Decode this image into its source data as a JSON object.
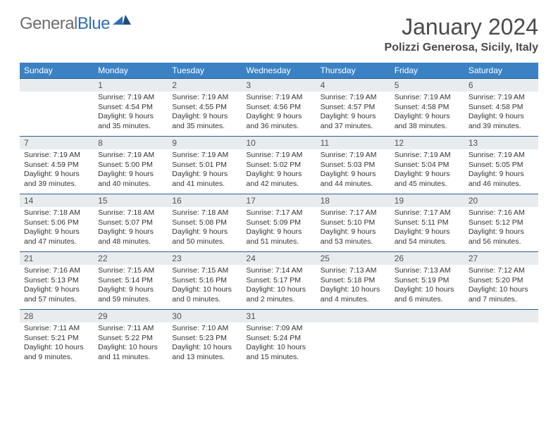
{
  "logo": {
    "text_gray": "General",
    "text_blue": "Blue"
  },
  "title": "January 2024",
  "location": "Polizzi Generosa, Sicily, Italy",
  "colors": {
    "header_bg": "#3a82c4",
    "header_text": "#ffffff",
    "daynum_bg": "#e9ecef",
    "daynum_border": "#2b5e8e",
    "body_text": "#333333",
    "logo_gray": "#6e6e6e",
    "logo_blue": "#2f6fb3",
    "title_color": "#4a4a4a"
  },
  "weekdays": [
    "Sunday",
    "Monday",
    "Tuesday",
    "Wednesday",
    "Thursday",
    "Friday",
    "Saturday"
  ],
  "weeks": [
    [
      {
        "n": "",
        "sr": "",
        "ss": "",
        "dl": ""
      },
      {
        "n": "1",
        "sr": "Sunrise: 7:19 AM",
        "ss": "Sunset: 4:54 PM",
        "dl": "Daylight: 9 hours and 35 minutes."
      },
      {
        "n": "2",
        "sr": "Sunrise: 7:19 AM",
        "ss": "Sunset: 4:55 PM",
        "dl": "Daylight: 9 hours and 35 minutes."
      },
      {
        "n": "3",
        "sr": "Sunrise: 7:19 AM",
        "ss": "Sunset: 4:56 PM",
        "dl": "Daylight: 9 hours and 36 minutes."
      },
      {
        "n": "4",
        "sr": "Sunrise: 7:19 AM",
        "ss": "Sunset: 4:57 PM",
        "dl": "Daylight: 9 hours and 37 minutes."
      },
      {
        "n": "5",
        "sr": "Sunrise: 7:19 AM",
        "ss": "Sunset: 4:58 PM",
        "dl": "Daylight: 9 hours and 38 minutes."
      },
      {
        "n": "6",
        "sr": "Sunrise: 7:19 AM",
        "ss": "Sunset: 4:58 PM",
        "dl": "Daylight: 9 hours and 39 minutes."
      }
    ],
    [
      {
        "n": "7",
        "sr": "Sunrise: 7:19 AM",
        "ss": "Sunset: 4:59 PM",
        "dl": "Daylight: 9 hours and 39 minutes."
      },
      {
        "n": "8",
        "sr": "Sunrise: 7:19 AM",
        "ss": "Sunset: 5:00 PM",
        "dl": "Daylight: 9 hours and 40 minutes."
      },
      {
        "n": "9",
        "sr": "Sunrise: 7:19 AM",
        "ss": "Sunset: 5:01 PM",
        "dl": "Daylight: 9 hours and 41 minutes."
      },
      {
        "n": "10",
        "sr": "Sunrise: 7:19 AM",
        "ss": "Sunset: 5:02 PM",
        "dl": "Daylight: 9 hours and 42 minutes."
      },
      {
        "n": "11",
        "sr": "Sunrise: 7:19 AM",
        "ss": "Sunset: 5:03 PM",
        "dl": "Daylight: 9 hours and 44 minutes."
      },
      {
        "n": "12",
        "sr": "Sunrise: 7:19 AM",
        "ss": "Sunset: 5:04 PM",
        "dl": "Daylight: 9 hours and 45 minutes."
      },
      {
        "n": "13",
        "sr": "Sunrise: 7:19 AM",
        "ss": "Sunset: 5:05 PM",
        "dl": "Daylight: 9 hours and 46 minutes."
      }
    ],
    [
      {
        "n": "14",
        "sr": "Sunrise: 7:18 AM",
        "ss": "Sunset: 5:06 PM",
        "dl": "Daylight: 9 hours and 47 minutes."
      },
      {
        "n": "15",
        "sr": "Sunrise: 7:18 AM",
        "ss": "Sunset: 5:07 PM",
        "dl": "Daylight: 9 hours and 48 minutes."
      },
      {
        "n": "16",
        "sr": "Sunrise: 7:18 AM",
        "ss": "Sunset: 5:08 PM",
        "dl": "Daylight: 9 hours and 50 minutes."
      },
      {
        "n": "17",
        "sr": "Sunrise: 7:17 AM",
        "ss": "Sunset: 5:09 PM",
        "dl": "Daylight: 9 hours and 51 minutes."
      },
      {
        "n": "18",
        "sr": "Sunrise: 7:17 AM",
        "ss": "Sunset: 5:10 PM",
        "dl": "Daylight: 9 hours and 53 minutes."
      },
      {
        "n": "19",
        "sr": "Sunrise: 7:17 AM",
        "ss": "Sunset: 5:11 PM",
        "dl": "Daylight: 9 hours and 54 minutes."
      },
      {
        "n": "20",
        "sr": "Sunrise: 7:16 AM",
        "ss": "Sunset: 5:12 PM",
        "dl": "Daylight: 9 hours and 56 minutes."
      }
    ],
    [
      {
        "n": "21",
        "sr": "Sunrise: 7:16 AM",
        "ss": "Sunset: 5:13 PM",
        "dl": "Daylight: 9 hours and 57 minutes."
      },
      {
        "n": "22",
        "sr": "Sunrise: 7:15 AM",
        "ss": "Sunset: 5:14 PM",
        "dl": "Daylight: 9 hours and 59 minutes."
      },
      {
        "n": "23",
        "sr": "Sunrise: 7:15 AM",
        "ss": "Sunset: 5:16 PM",
        "dl": "Daylight: 10 hours and 0 minutes."
      },
      {
        "n": "24",
        "sr": "Sunrise: 7:14 AM",
        "ss": "Sunset: 5:17 PM",
        "dl": "Daylight: 10 hours and 2 minutes."
      },
      {
        "n": "25",
        "sr": "Sunrise: 7:13 AM",
        "ss": "Sunset: 5:18 PM",
        "dl": "Daylight: 10 hours and 4 minutes."
      },
      {
        "n": "26",
        "sr": "Sunrise: 7:13 AM",
        "ss": "Sunset: 5:19 PM",
        "dl": "Daylight: 10 hours and 6 minutes."
      },
      {
        "n": "27",
        "sr": "Sunrise: 7:12 AM",
        "ss": "Sunset: 5:20 PM",
        "dl": "Daylight: 10 hours and 7 minutes."
      }
    ],
    [
      {
        "n": "28",
        "sr": "Sunrise: 7:11 AM",
        "ss": "Sunset: 5:21 PM",
        "dl": "Daylight: 10 hours and 9 minutes."
      },
      {
        "n": "29",
        "sr": "Sunrise: 7:11 AM",
        "ss": "Sunset: 5:22 PM",
        "dl": "Daylight: 10 hours and 11 minutes."
      },
      {
        "n": "30",
        "sr": "Sunrise: 7:10 AM",
        "ss": "Sunset: 5:23 PM",
        "dl": "Daylight: 10 hours and 13 minutes."
      },
      {
        "n": "31",
        "sr": "Sunrise: 7:09 AM",
        "ss": "Sunset: 5:24 PM",
        "dl": "Daylight: 10 hours and 15 minutes."
      },
      {
        "n": "",
        "sr": "",
        "ss": "",
        "dl": ""
      },
      {
        "n": "",
        "sr": "",
        "ss": "",
        "dl": ""
      },
      {
        "n": "",
        "sr": "",
        "ss": "",
        "dl": ""
      }
    ]
  ]
}
